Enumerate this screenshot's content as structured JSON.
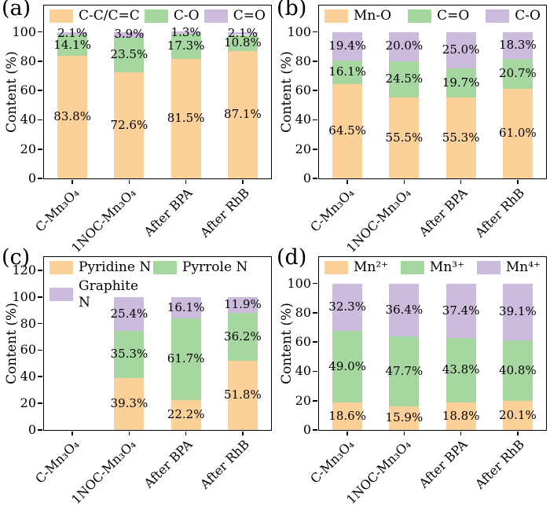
{
  "figure": {
    "background": "#ffffff",
    "axis_color": "#000000",
    "text_color": "#000000",
    "palette": {
      "orange": "#FCD199",
      "green": "#A6D7A0",
      "purple": "#CCBBDD"
    }
  },
  "chart_data": [
    {
      "type": "bar",
      "stacked": true,
      "panel_label": "(a)",
      "title": "",
      "xlabel": "",
      "ylabel": "Content (%)",
      "categories": [
        "C-Mn₃O₄",
        "1NOC-Mn₃O₄",
        "After BPA",
        "After RhB"
      ],
      "yticks": [
        0,
        20,
        40,
        60,
        80,
        100
      ],
      "ylim": [
        0,
        118
      ],
      "grid": false,
      "legend_position": "top-inside",
      "legend_rows": 1,
      "series": [
        {
          "name": "C-C/C=C",
          "color": "#FCD199",
          "values": [
            83.8,
            72.6,
            81.5,
            87.1
          ]
        },
        {
          "name": "C-O",
          "color": "#A6D7A0",
          "values": [
            14.1,
            23.5,
            17.3,
            10.8
          ]
        },
        {
          "name": "C=O",
          "color": "#CCBBDD",
          "values": [
            2.1,
            3.9,
            1.3,
            2.1
          ]
        }
      ]
    },
    {
      "type": "bar",
      "stacked": true,
      "panel_label": "(b)",
      "title": "",
      "xlabel": "",
      "ylabel": "Content (%)",
      "categories": [
        "C-Mn₃O₄",
        "1NOC-Mn₃O₄",
        "After BPA",
        "After RhB"
      ],
      "yticks": [
        0,
        20,
        40,
        60,
        80,
        100
      ],
      "ylim": [
        0,
        118
      ],
      "grid": false,
      "legend_position": "top-inside",
      "legend_rows": 1,
      "series": [
        {
          "name": "Mn-O",
          "color": "#FCD199",
          "values": [
            64.5,
            55.5,
            55.3,
            61.0
          ]
        },
        {
          "name": "C=O",
          "color": "#A6D7A0",
          "values": [
            16.1,
            24.5,
            19.7,
            20.7
          ]
        },
        {
          "name": "C-O",
          "color": "#CCBBDD",
          "values": [
            19.4,
            20.0,
            25.0,
            18.3
          ]
        }
      ]
    },
    {
      "type": "bar",
      "stacked": true,
      "panel_label": "(c)",
      "title": "",
      "xlabel": "",
      "ylabel": "Content (%)",
      "categories": [
        "C-Mn₃O₄",
        "1NOC-Mn₃O₄",
        "After BPA",
        "After RhB"
      ],
      "yticks": [
        0,
        20,
        40,
        60,
        80,
        100,
        120
      ],
      "ylim": [
        0,
        130
      ],
      "grid": false,
      "legend_position": "top-inside",
      "legend_rows": 2,
      "series": [
        {
          "name": "Pyridine N",
          "color": "#FCD199",
          "values": [
            0,
            39.3,
            22.2,
            51.8
          ]
        },
        {
          "name": "Pyrrole N",
          "color": "#A6D7A0",
          "values": [
            0,
            35.3,
            61.7,
            36.2
          ]
        },
        {
          "name": "Graphite N",
          "color": "#CCBBDD",
          "values": [
            0,
            25.4,
            16.1,
            11.9
          ]
        }
      ]
    },
    {
      "type": "bar",
      "stacked": true,
      "panel_label": "(d)",
      "title": "",
      "xlabel": "",
      "ylabel": "Content (%)",
      "categories": [
        "C-Mn₃O₄",
        "1NOC-Mn₃O₄",
        "After BPA",
        "After RhB"
      ],
      "yticks": [
        0,
        20,
        40,
        60,
        80,
        100
      ],
      "ylim": [
        0,
        118
      ],
      "grid": false,
      "legend_position": "top-inside",
      "legend_rows": 1,
      "series": [
        {
          "name": "Mn²⁺",
          "color": "#FCD199",
          "values": [
            18.6,
            15.9,
            18.8,
            20.1
          ]
        },
        {
          "name": "Mn³⁺",
          "color": "#A6D7A0",
          "values": [
            49.0,
            47.7,
            43.8,
            40.8
          ]
        },
        {
          "name": "Mn⁴⁺",
          "color": "#CCBBDD",
          "values": [
            32.3,
            36.4,
            37.4,
            39.1
          ]
        }
      ]
    }
  ]
}
